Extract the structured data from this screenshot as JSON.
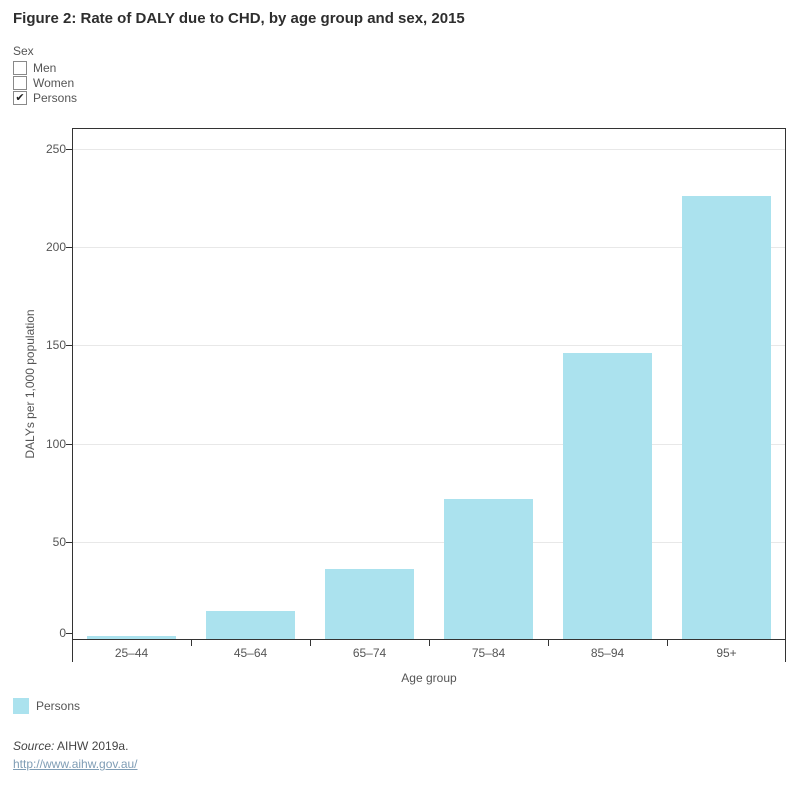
{
  "title": "Figure 2: Rate of DALY due to CHD, by age group and sex, 2015",
  "filter": {
    "label": "Sex",
    "checkmark": "✔",
    "options": [
      {
        "label": "Men",
        "checked": false
      },
      {
        "label": "Women",
        "checked": false
      },
      {
        "label": "Persons",
        "checked": true
      }
    ]
  },
  "chart_data": {
    "type": "bar",
    "categories": [
      "25–44",
      "45–64",
      "65–74",
      "75–84",
      "85–94",
      "95+"
    ],
    "series": [
      {
        "name": "Persons",
        "values": [
          2,
          15,
          36,
          72,
          146,
          226
        ]
      }
    ],
    "xlabel": "Age group",
    "ylabel": "DALYs per 1,000 population",
    "ylim": [
      0,
      250
    ],
    "yticks": [
      0,
      50,
      100,
      150,
      200,
      250
    ],
    "grid": "horizontal",
    "legend_position": "bottom-left",
    "bar_color": "#abe2ee"
  },
  "legend": {
    "items": [
      {
        "label": "Persons",
        "color": "#abe2ee"
      }
    ]
  },
  "footer": {
    "source_prefix": "Source:",
    "source_rest": "AIHW 2019a.",
    "link_text": "http://www.aihw.gov.au/"
  }
}
